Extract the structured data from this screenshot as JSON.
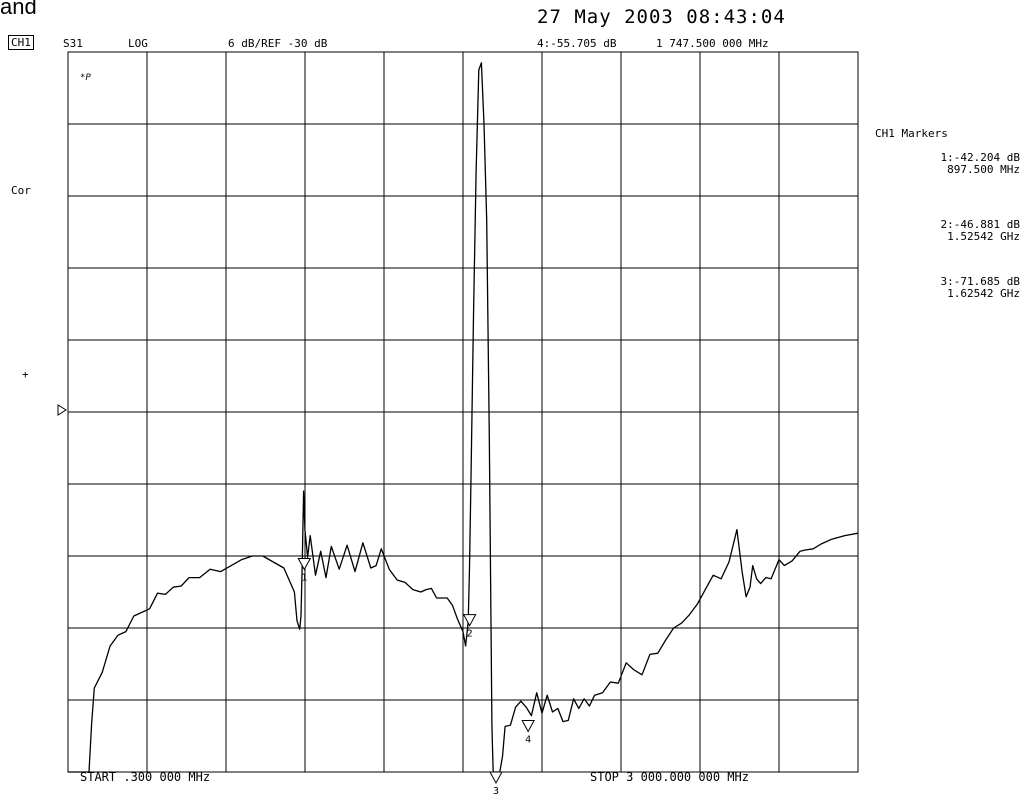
{
  "header": {
    "cut_text": "and",
    "datetime": "27 May 2003  08:43:04",
    "channel": "CH1",
    "param": "S31",
    "format": "LOG",
    "scale": "6 dB/REF -30 dB",
    "active_marker": "4:-55.705 dB",
    "active_marker_freq": "1 747.500 000 MHz"
  },
  "side_labels": {
    "cor": "Cor",
    "plus": "+"
  },
  "footer": {
    "start": "START  .300 000 MHz",
    "stop": "STOP 3 000.000 000 MHz"
  },
  "markers_panel": {
    "title": "CH1 Markers",
    "items": [
      {
        "value": "1:-42.204 dB",
        "freq": "897.500 MHz"
      },
      {
        "value": "2:-46.881 dB",
        "freq": "1.52542 GHz"
      },
      {
        "value": "3:-71.685 dB",
        "freq": "1.62542 GHz"
      }
    ]
  },
  "chart_data": {
    "type": "line",
    "title": "",
    "xlabel": "",
    "ylabel": "",
    "x_unit": "MHz",
    "y_unit": "dB",
    "xlim": [
      0.3,
      3000
    ],
    "ylim": [
      -60,
      0
    ],
    "grid": true,
    "series": [
      {
        "x": [
          0.3,
          80,
          90,
          100,
          130,
          160,
          190,
          220,
          250,
          280,
          310,
          340,
          370,
          400,
          430,
          460,
          500,
          540,
          580,
          620,
          660,
          700,
          740,
          780,
          820,
          860,
          870,
          880,
          885,
          890,
          895,
          900,
          910,
          920,
          940,
          960,
          980,
          1000,
          1030,
          1060,
          1090,
          1120,
          1150,
          1170,
          1190,
          1220,
          1250,
          1280,
          1310,
          1340,
          1360,
          1380,
          1400,
          1420,
          1440,
          1460,
          1480,
          1500,
          1510,
          1520,
          1525,
          1530,
          1540,
          1550,
          1560,
          1570,
          1580,
          1590,
          1600,
          1610,
          1612,
          1615,
          1620,
          1625,
          1630,
          1640,
          1650,
          1660,
          1680,
          1700,
          1720,
          1740,
          1760,
          1780,
          1800,
          1820,
          1840,
          1860,
          1880,
          1900,
          1920,
          1940,
          1960,
          1980,
          2000,
          2030,
          2060,
          2090,
          2120,
          2150,
          2180,
          2210,
          2240,
          2270,
          2300,
          2330,
          2360,
          2390,
          2420,
          2450,
          2480,
          2510,
          2540,
          2560,
          2575,
          2590,
          2600,
          2615,
          2630,
          2650,
          2670,
          2700,
          2720,
          2750,
          2780,
          2800,
          2830,
          2860,
          2900,
          2950,
          3000
        ],
        "y": [
          -60,
          -60,
          -56,
          -53,
          -51.7,
          -49.5,
          -48.6,
          -48.3,
          -47,
          -46.7,
          -46.4,
          -45.1,
          -45.2,
          -44.6,
          -44.5,
          -43.8,
          -43.8,
          -43.1,
          -43.3,
          -42.8,
          -42.3,
          -42,
          -42,
          -42.5,
          -43,
          -45,
          -47.4,
          -48.1,
          -47,
          -42.4,
          -36.6,
          -39.8,
          -42.1,
          -40.3,
          -43.6,
          -41.6,
          -43.8,
          -41.2,
          -43.1,
          -41.1,
          -43.3,
          -40.9,
          -43,
          -42.8,
          -41.4,
          -43.1,
          -44,
          -44.2,
          -44.8,
          -45,
          -44.8,
          -44.7,
          -45.5,
          -45.5,
          -45.5,
          -46.1,
          -47.3,
          -48.3,
          -49.5,
          -47.5,
          -43,
          -36,
          -22,
          -10,
          -1.5,
          -0.9,
          -6,
          -14,
          -32,
          -56,
          -58,
          -60,
          -60,
          -60,
          -60,
          -60,
          -58.7,
          -56.2,
          -56.1,
          -54.6,
          -54.1,
          -54.6,
          -55.3,
          -53.4,
          -55.1,
          -53.6,
          -55,
          -54.7,
          -55.8,
          -55.7,
          -53.9,
          -54.7,
          -53.9,
          -54.5,
          -53.6,
          -53.4,
          -52.5,
          -52.6,
          -50.9,
          -51.5,
          -51.9,
          -50.2,
          -50.1,
          -49,
          -48,
          -47.6,
          -46.9,
          -46,
          -44.8,
          -43.6,
          -43.9,
          -42.5,
          -39.8,
          -43.3,
          -45.4,
          -44.6,
          -42.8,
          -43.9,
          -44.3,
          -43.8,
          -43.9,
          -42.3,
          -42.8,
          -42.4,
          -41.6,
          -41.5,
          -41.4,
          -41,
          -40.6,
          -40.3,
          -40.1
        ]
      }
    ],
    "x_ticks": [
      "START .300 000 MHz",
      "STOP 3 000.000 000 MHz"
    ],
    "annotations": [
      {
        "label": "1",
        "x": 897.5,
        "y": -42.204
      },
      {
        "label": "2",
        "x": 1525.42,
        "y": -46.881
      },
      {
        "label": "3",
        "x": 1625.42,
        "y": -71.685
      },
      {
        "label": "4",
        "x": 1747.5,
        "y": -55.705
      }
    ],
    "annotation_text": "*P"
  }
}
